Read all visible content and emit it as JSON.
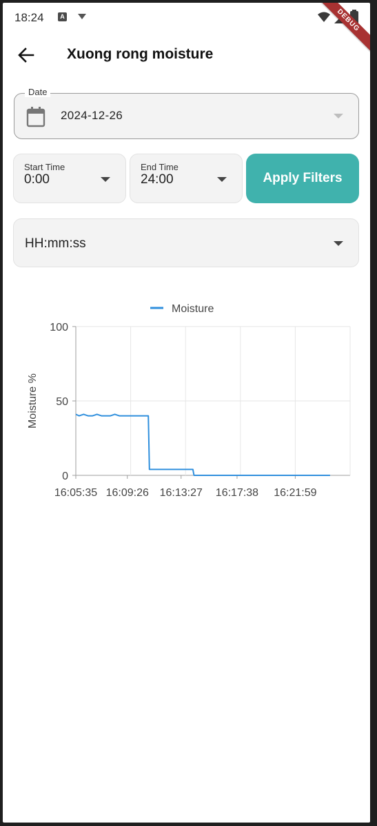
{
  "status_bar": {
    "time": "18:24",
    "notification_badge": "A",
    "icons": [
      "wifi-icon",
      "signal-icon",
      "battery-icon"
    ]
  },
  "debug_banner": "DEBUG",
  "app_bar": {
    "title": "Xuong rong moisture",
    "back_icon": "arrow-back-icon"
  },
  "filters": {
    "date_label": "Date",
    "date_value": "2024-12-26",
    "start_time_label": "Start Time",
    "start_time_value": "0:00",
    "end_time_label": "End Time",
    "end_time_value": "24:00",
    "apply_button_label": "Apply Filters",
    "time_format_value": "HH:mm:ss"
  },
  "colors": {
    "accent": "#40b2ad",
    "series_line": "#2f8fdd",
    "debug_ribbon": "#a83232"
  },
  "chart_data": {
    "type": "line",
    "legend": [
      "Moisture"
    ],
    "legend_position": "top-center",
    "ylabel": "Moisture %",
    "xlabel": "",
    "ylim": [
      0,
      100
    ],
    "y_ticks": [
      "100",
      "50",
      "0"
    ],
    "x_ticks": [
      "16:05:35",
      "16:09:26",
      "16:13:27",
      "16:17:38",
      "16:21:59"
    ],
    "grid": true,
    "series": [
      {
        "name": "Moisture",
        "points": [
          [
            "16:05:35",
            41
          ],
          [
            "16:05:50",
            40
          ],
          [
            "16:06:10",
            41
          ],
          [
            "16:06:30",
            40
          ],
          [
            "16:06:50",
            40
          ],
          [
            "16:07:10",
            41
          ],
          [
            "16:07:30",
            40
          ],
          [
            "16:07:50",
            40
          ],
          [
            "16:08:10",
            40
          ],
          [
            "16:08:30",
            41
          ],
          [
            "16:08:50",
            40
          ],
          [
            "16:09:10",
            40
          ],
          [
            "16:09:30",
            40
          ],
          [
            "16:09:50",
            40
          ],
          [
            "16:10:10",
            40
          ],
          [
            "16:10:30",
            40
          ],
          [
            "16:10:55",
            40
          ],
          [
            "16:11:00",
            40
          ],
          [
            "16:11:05",
            4
          ],
          [
            "16:11:30",
            4
          ],
          [
            "16:12:00",
            4
          ],
          [
            "16:12:30",
            4
          ],
          [
            "16:13:00",
            4
          ],
          [
            "16:14:00",
            4
          ],
          [
            "16:14:20",
            4
          ],
          [
            "16:14:25",
            0
          ],
          [
            "16:18:00",
            0
          ],
          [
            "16:24:35",
            0
          ]
        ]
      }
    ]
  }
}
